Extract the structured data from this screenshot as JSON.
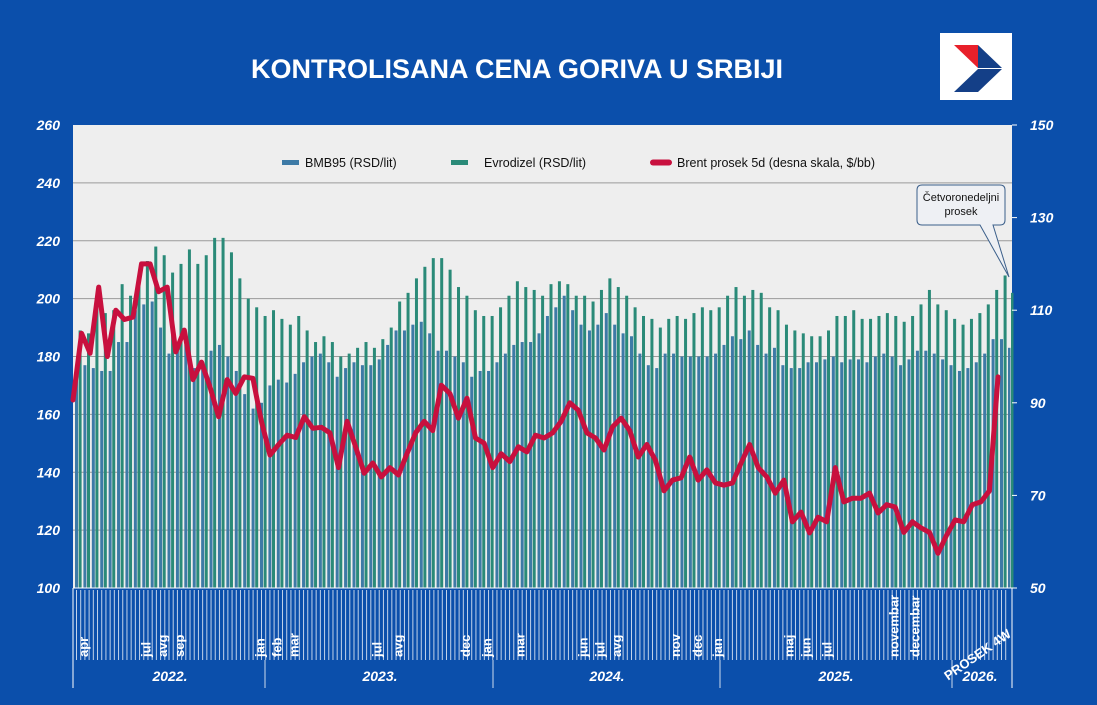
{
  "title": "KONTROLISANA CENA GORIVA U SRBIJI",
  "colors": {
    "background": "#0b4fab",
    "plot_bg": "#eeeeee",
    "bmb95": "#3d7aa6",
    "evrodizel": "#2a8a78",
    "brent": "#c8103e"
  },
  "callout": {
    "line1": "Četvoronedeljni",
    "line2": "prosek"
  },
  "logo": {
    "icon": "arrow-logo",
    "colors": [
      "#e8202a",
      "#143f87"
    ]
  },
  "chart_data": {
    "type": "bar+line",
    "title": "KONTROLISANA CENA GORIVA U SRBIJI",
    "legend": [
      "BMB95 (RSD/lit)",
      "Evrodizel (RSD/lit)",
      "Brent prosek  5d (desna skala, $/bb)"
    ],
    "legend_position": "top",
    "grid": true,
    "y_left": {
      "range": [
        100,
        260
      ],
      "ticks": [
        "100",
        "120",
        "140",
        "160",
        "180",
        "200",
        "220",
        "240",
        "260"
      ]
    },
    "y_right": {
      "range": [
        50,
        150
      ],
      "ticks": [
        "50",
        "70",
        "90",
        "110",
        "130",
        "150"
      ]
    },
    "x_month_labels": [
      "apr",
      "jul",
      "avg",
      "sep",
      "jan",
      "feb",
      "mar",
      "jul",
      "avg",
      "dec",
      "jan",
      "mar",
      "jun",
      "jul",
      "avg",
      "nov",
      "dec",
      "jan",
      "maj",
      "jun",
      "jul",
      "novembar",
      "decembar",
      "PROSEK 4W"
    ],
    "x_year_labels": [
      "2022.",
      "2023.",
      "2024.",
      "2025.",
      "2026."
    ],
    "series": [
      {
        "name": "BMB95 (RSD/lit)",
        "axis": "left",
        "values": [
          176,
          177,
          176,
          175,
          175,
          185,
          185,
          196,
          198,
          199,
          190,
          181,
          182,
          184,
          176,
          178,
          182,
          184,
          180,
          175,
          167,
          162,
          164,
          170,
          172,
          171,
          174,
          178,
          180,
          181,
          178,
          173,
          176,
          178,
          177,
          177,
          179,
          184,
          189,
          189,
          191,
          192,
          188,
          182,
          182,
          180,
          178,
          173,
          175,
          175,
          178,
          181,
          184,
          185,
          185,
          188,
          194,
          197,
          201,
          196,
          191,
          189,
          191,
          195,
          191,
          188,
          187,
          181,
          177,
          176,
          181,
          181,
          180,
          180,
          180,
          180,
          181,
          184,
          187,
          186,
          189,
          184,
          181,
          183,
          177,
          176,
          176,
          178,
          178,
          179,
          180,
          178,
          179,
          179,
          178,
          180,
          181,
          180,
          177,
          179,
          182,
          182,
          181,
          179,
          177,
          175,
          176,
          178,
          181,
          186,
          186
        ],
        "four_week_average": 183
      },
      {
        "name": "Evrodizel (RSD/lit)",
        "axis": "left",
        "values": [
          189,
          188,
          197,
          195,
          196,
          205,
          201,
          206,
          213,
          218,
          215,
          209,
          212,
          217,
          212,
          215,
          221,
          221,
          216,
          207,
          200,
          197,
          194,
          196,
          193,
          191,
          194,
          189,
          185,
          187,
          185,
          180,
          181,
          183,
          185,
          183,
          186,
          190,
          199,
          202,
          207,
          211,
          214,
          214,
          210,
          204,
          201,
          196,
          194,
          194,
          197,
          201,
          206,
          204,
          203,
          201,
          205,
          206,
          205,
          201,
          201,
          199,
          203,
          207,
          204,
          201,
          197,
          194,
          193,
          190,
          193,
          194,
          193,
          195,
          197,
          196,
          197,
          201,
          204,
          201,
          203,
          202,
          197,
          196,
          191,
          189,
          188,
          187,
          187,
          189,
          194,
          194,
          196,
          193,
          193,
          194,
          195,
          194,
          192,
          194,
          198,
          203,
          198,
          196,
          193,
          191,
          193,
          195,
          198,
          203,
          208
        ],
        "four_week_average": 202
      },
      {
        "name": "Brent prosek  5d (desna skala, $/bb)",
        "axis": "right",
        "values": [
          90.6,
          105,
          100.7,
          115,
          100,
          110,
          108,
          108.5,
          120,
          120,
          114,
          115,
          101,
          105.7,
          95,
          98.8,
          93.4,
          87,
          95,
          92,
          95.6,
          95.3,
          86,
          78.7,
          81,
          83,
          82.5,
          87,
          84.5,
          84.7,
          83.5,
          76,
          86,
          80.5,
          74.8,
          77,
          74,
          76,
          74.4,
          79,
          83.5,
          86,
          84,
          93.8,
          92,
          86.7,
          91,
          82.4,
          81.3,
          76,
          79,
          77.3,
          80.5,
          79.4,
          83,
          82.4,
          83.5,
          86,
          90,
          88.4,
          83.5,
          82.4,
          79.8,
          84.8,
          86.7,
          84,
          78.3,
          81,
          77.6,
          71,
          73.3,
          73.8,
          78.3,
          73.3,
          75.5,
          72.7,
          72.2,
          72.7,
          77,
          81,
          76,
          74,
          70.5,
          73.3,
          64.3,
          66.4,
          61.9,
          65.3,
          64.3,
          76,
          68.6,
          69.4,
          69.4,
          70.5,
          66.2,
          68,
          67.5,
          62,
          64.3,
          63,
          62,
          57.5,
          61.4,
          64.7,
          64.3,
          68,
          68.6,
          71,
          95.6
        ]
      }
    ]
  }
}
